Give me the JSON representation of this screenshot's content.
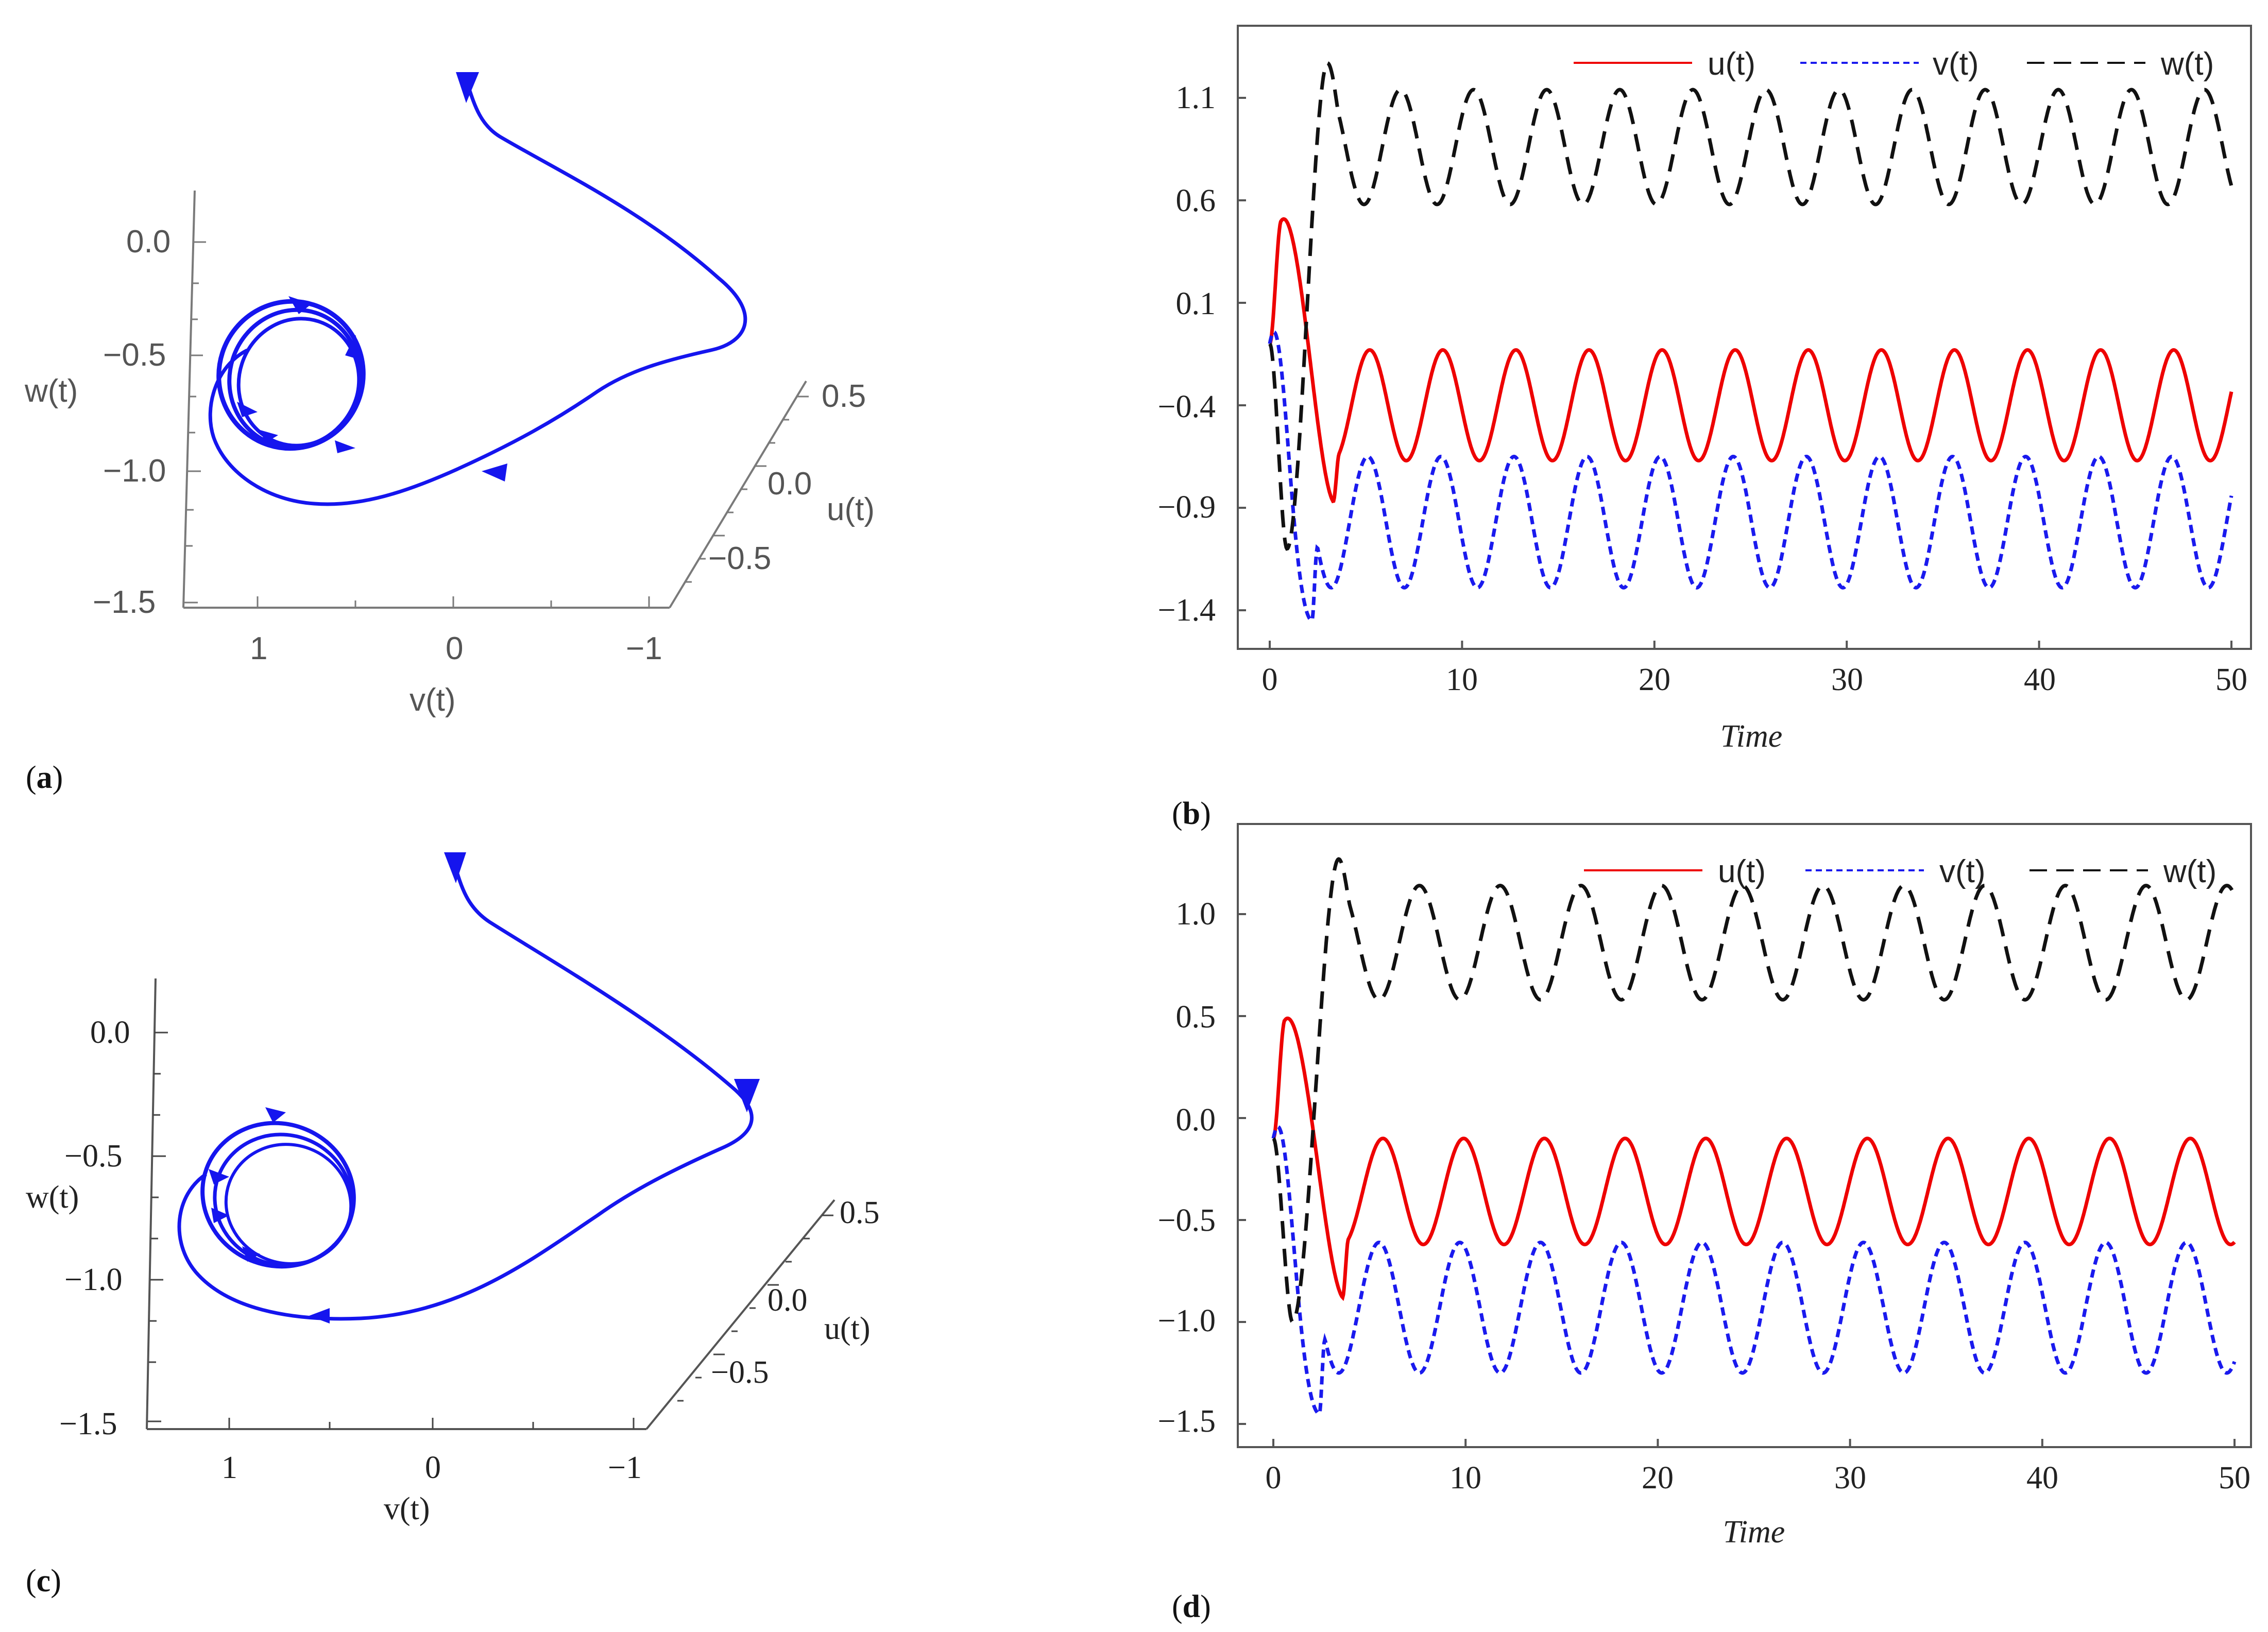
{
  "colors": {
    "u": "#ee0000",
    "v": "#1a1aee",
    "w": "#111111",
    "traj": "#1515ee"
  },
  "chart_data": [
    {
      "id": "a",
      "type": "line",
      "subtype": "3d-phase-portrait",
      "panel_label": "a",
      "axis_labels": {
        "u": "u(t)",
        "v": "v(t)",
        "w": "w(t)"
      },
      "w_ticks": [
        "0.0",
        "−0.5",
        "−1.0",
        "−1.5"
      ],
      "v_ticks": [
        "1",
        "0",
        "−1"
      ],
      "u_ticks": [
        "0.5",
        "0.0",
        "−0.5"
      ],
      "trajectory": "converges from an initial point to a closed limit cycle; arrowheads show direction of motion",
      "font_style": "sans"
    },
    {
      "id": "b",
      "type": "line",
      "panel_label": "b",
      "xlabel": "Time",
      "x_ticks": [
        "0",
        "10",
        "20",
        "30",
        "40",
        "50"
      ],
      "y_ticks": [
        "1.1",
        "0.6",
        "0.1",
        "−0.4",
        "−0.9",
        "−1.4"
      ],
      "xlim": [
        -1.5,
        51
      ],
      "ylim": [
        -1.6,
        1.45
      ],
      "legend": [
        "u(t)",
        "v(t)",
        "w(t)"
      ],
      "legend_placement": "top-right",
      "series": [
        {
          "name": "u(t)",
          "style": "solid",
          "initial": -0.1,
          "peak": 0.5,
          "peak_t": 0.6,
          "early_min": -0.87,
          "early_min_t": 3.3,
          "osc_center": -0.4,
          "osc_amp": 0.27,
          "osc_period": 3.8,
          "osc_max": -0.13,
          "osc_min": -0.67
        },
        {
          "name": "v(t)",
          "style": "dashed-short",
          "initial": -0.1,
          "early_min": -1.45,
          "early_min_t": 2.2,
          "osc_center": -0.97,
          "osc_amp": 0.32,
          "osc_period": 3.8,
          "osc_max": -0.65,
          "osc_min": -1.29
        },
        {
          "name": "w(t)",
          "style": "dashed-long",
          "initial": -0.1,
          "early_min": -1.1,
          "early_min_t": 0.9,
          "peak": 1.27,
          "peak_t": 3.0,
          "osc_center": 0.86,
          "osc_amp": 0.28,
          "osc_period": 3.8,
          "osc_max": 1.14,
          "osc_min": 0.58
        }
      ]
    },
    {
      "id": "c",
      "type": "line",
      "subtype": "3d-phase-portrait",
      "panel_label": "c",
      "axis_labels": {
        "u": "u(t)",
        "v": "v(t)",
        "w": "w(t)"
      },
      "w_ticks": [
        "0.0",
        "−0.5",
        "−1.0",
        "−1.5"
      ],
      "v_ticks": [
        "1",
        "0",
        "−1"
      ],
      "u_ticks": [
        "0.5",
        "0.0",
        "−0.5"
      ],
      "trajectory": "converges from an initial point to a closed limit cycle; arrowheads show direction of motion",
      "font_style": "serif"
    },
    {
      "id": "d",
      "type": "line",
      "panel_label": "d",
      "xlabel": "Time",
      "x_ticks": [
        "0",
        "10",
        "20",
        "30",
        "40",
        "50"
      ],
      "y_ticks": [
        "1.0",
        "0.5",
        "0.0",
        "−0.5",
        "−1.0",
        "−1.5"
      ],
      "xlim": [
        -1.5,
        51
      ],
      "ylim": [
        -1.6,
        1.45
      ],
      "legend": [
        "u(t)",
        "v(t)",
        "w(t)"
      ],
      "legend_placement": "top-right",
      "series": [
        {
          "name": "u(t)",
          "style": "solid",
          "initial": -0.1,
          "peak": 0.48,
          "peak_t": 0.6,
          "early_min": -0.88,
          "early_min_t": 3.6,
          "osc_center": -0.36,
          "osc_amp": 0.26,
          "osc_period": 4.2,
          "osc_max": -0.1,
          "osc_min": -0.62
        },
        {
          "name": "v(t)",
          "style": "dashed-short",
          "initial": -0.1,
          "early_min": -1.45,
          "early_min_t": 2.4,
          "osc_center": -0.93,
          "osc_amp": 0.32,
          "osc_period": 4.2,
          "osc_max": -0.61,
          "osc_min": -1.25
        },
        {
          "name": "w(t)",
          "style": "dashed-long",
          "initial": -0.1,
          "early_min": -1.0,
          "early_min_t": 1.0,
          "peak": 1.27,
          "peak_t": 3.4,
          "osc_center": 0.86,
          "osc_amp": 0.28,
          "osc_period": 4.2,
          "osc_max": 1.14,
          "osc_min": 0.58
        }
      ]
    }
  ]
}
